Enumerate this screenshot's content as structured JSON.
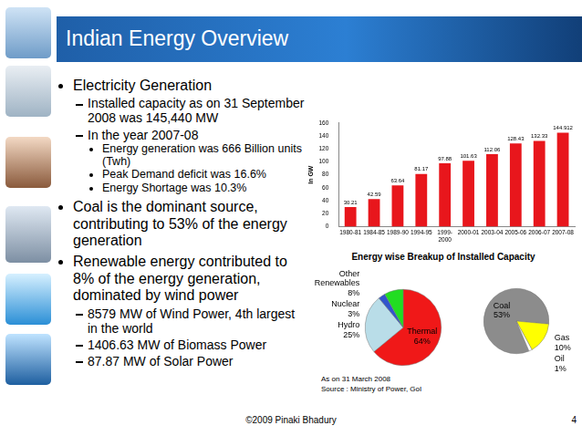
{
  "slide": {
    "title": "Indian Energy Overview",
    "bullets": [
      {
        "text": "Electricity Generation",
        "children": [
          {
            "text": "Installed capacity as on 31 September 2008 was 145,440 MW"
          },
          {
            "text": "In the year 2007-08",
            "children": [
              {
                "text": "Energy generation was 666 Billion units (Twh)"
              },
              {
                "text": "Peak Demand deficit was 16.6%"
              },
              {
                "text": "Energy Shortage was 10.3%"
              }
            ]
          }
        ]
      },
      {
        "text": "Coal is the dominant source, contributing to 53% of the energy generation"
      },
      {
        "text": "Renewable energy contributed to 8% of the energy generation, dominated by wind power",
        "children": [
          {
            "text": "8579 MW of Wind Power, 4th largest in the world"
          },
          {
            "text": "1406.63 MW of Biomass Power"
          },
          {
            "text": "87.87 MW of Solar Power"
          }
        ]
      }
    ],
    "footer": "©2009 Pinaki Bhadury",
    "page": 4
  },
  "chart_data": [
    {
      "type": "bar",
      "categories": [
        "1980-81",
        "1984-85",
        "1989-90",
        "1994-95",
        "1999-2000",
        "2000-01",
        "2003-04",
        "2005-06",
        "2006-07",
        "2007-08"
      ],
      "values": [
        30.21,
        42.59,
        63.64,
        81.17,
        97.88,
        101.63,
        112.06,
        128.43,
        132.33,
        144.912
      ],
      "color": "#e8161c",
      "ylabel": "In GW",
      "ylim": [
        0,
        160
      ],
      "yticks": [
        0,
        20,
        40,
        60,
        80,
        100,
        120,
        140,
        160
      ],
      "grid": false,
      "data_labels": true
    },
    {
      "type": "pie",
      "title": "Energy wise Breakup of Installed Capacity",
      "categories": [
        "Thermal",
        "Hydro",
        "Nuclear",
        "Other Renewables"
      ],
      "values": [
        64,
        25,
        3,
        8
      ],
      "value_labels": [
        "64%",
        "25%",
        "3%",
        "8%"
      ],
      "colors": [
        "#f01818",
        "#b9dde8",
        "#3355cc",
        "#22dd22"
      ],
      "data_labels": true,
      "annotations": [
        "As on 31 March 2008",
        "Source : Ministry of Power, GoI"
      ]
    },
    {
      "type": "pie",
      "categories": [
        "Coal",
        "Gas",
        "Oil"
      ],
      "values": [
        53,
        10,
        1
      ],
      "value_labels": [
        "53%",
        "10%",
        "1%"
      ],
      "colors": [
        "#8c8c8c",
        "#ffff00",
        "#ffffff"
      ],
      "data_labels": true
    }
  ]
}
